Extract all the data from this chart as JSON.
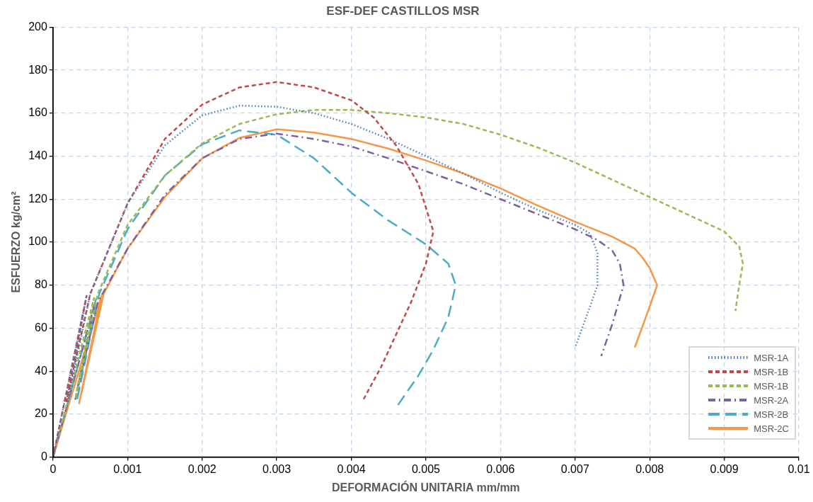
{
  "chart_data": {
    "type": "line",
    "title": "ESF-DEF CASTILLOS MSR",
    "xlabel": "DEFORMACIÓN UNITARIA mm/mm",
    "ylabel": "ESFUERZO kg/cm²",
    "xlim": [
      0,
      0.01
    ],
    "ylim": [
      0,
      200
    ],
    "xticks": [
      0,
      0.001,
      0.002,
      0.003,
      0.004,
      0.005,
      0.006,
      0.007,
      0.008,
      0.009,
      0.01
    ],
    "yticks": [
      0,
      20,
      40,
      60,
      80,
      100,
      120,
      140,
      160,
      180,
      200
    ],
    "grid": true,
    "legend": "bottom right",
    "marker": "none",
    "series": [
      {
        "name": "MSR-1A",
        "color": "#4a7ebb",
        "line_style": "dotted",
        "x": [
          0,
          0.00045,
          0.0002,
          0.0005,
          0.001,
          0.0015,
          0.002,
          0.0025,
          0.003,
          0.0035,
          0.004,
          0.0045,
          0.005,
          0.0055,
          0.006,
          0.0065,
          0.007,
          0.0072,
          0.0073,
          0.0073,
          0.0072,
          0.007
        ],
        "values": [
          0,
          75,
          26,
          76,
          118,
          145,
          159,
          163.5,
          163,
          160,
          155,
          148,
          140,
          132,
          123,
          115,
          108,
          104,
          95,
          80,
          70,
          51
        ]
      },
      {
        "name": "MSR-1B",
        "color": "#be4b48",
        "line_style": "dashed",
        "x": [
          0,
          0.00045,
          0.00018,
          0.0005,
          0.001,
          0.0015,
          0.002,
          0.0025,
          0.003,
          0.0035,
          0.004,
          0.0043,
          0.0046,
          0.0049,
          0.005,
          0.0051,
          0.005,
          0.0048,
          0.0046,
          0.0044,
          0.00415
        ],
        "values": [
          0,
          75,
          26,
          76,
          118,
          148,
          164,
          172,
          174.5,
          172,
          166,
          158,
          145,
          127,
          116,
          105,
          90,
          72,
          57,
          42,
          26
        ]
      },
      {
        "name": "MSR-1B",
        "color": "#98b954",
        "line_style": "dashed",
        "x": [
          0,
          0.00055,
          0.0003,
          0.0006,
          0.001,
          0.0015,
          0.002,
          0.0025,
          0.003,
          0.0035,
          0.004,
          0.0045,
          0.005,
          0.0055,
          0.006,
          0.0065,
          0.007,
          0.0075,
          0.008,
          0.0085,
          0.009,
          0.0092,
          0.00925,
          0.0092,
          0.00915
        ],
        "values": [
          0,
          74,
          27,
          76,
          108,
          131,
          146,
          155,
          159.5,
          161.5,
          161.5,
          160,
          158,
          155,
          150,
          144,
          137,
          129,
          121,
          113,
          105,
          98,
          90,
          80,
          68
        ]
      },
      {
        "name": "MSR-2A",
        "color": "#7d60a0",
        "line_style": "dashdot",
        "x": [
          0,
          0.00055,
          0.0003,
          0.0006,
          0.001,
          0.0015,
          0.002,
          0.0025,
          0.003,
          0.0035,
          0.004,
          0.0045,
          0.005,
          0.0055,
          0.006,
          0.0065,
          0.007,
          0.0073,
          0.0075,
          0.0076,
          0.00765,
          0.0075,
          0.00735
        ],
        "values": [
          0,
          70,
          27,
          72,
          97,
          122,
          139,
          148,
          150.5,
          148,
          144.5,
          139,
          133,
          127,
          120,
          113,
          106,
          101,
          96,
          90,
          80,
          62,
          47
        ]
      },
      {
        "name": "MSR-2B",
        "color": "#4bacc6",
        "line_style": "longdash",
        "x": [
          0,
          0.00058,
          0.00032,
          0.00062,
          0.001,
          0.0015,
          0.002,
          0.0025,
          0.003,
          0.0035,
          0.004,
          0.0045,
          0.005,
          0.0053,
          0.0054,
          0.0053,
          0.0051,
          0.0049,
          0.0046
        ],
        "values": [
          0,
          74,
          26,
          76,
          106,
          131,
          145.5,
          152,
          150,
          139,
          123,
          110,
          99,
          90,
          80,
          65,
          50,
          38,
          23
        ]
      },
      {
        "name": "MSR-2C",
        "color": "#f79646",
        "line_style": "solid",
        "x": [
          0,
          0.00065,
          0.00035,
          0.00068,
          0.001,
          0.0015,
          0.002,
          0.0025,
          0.003,
          0.0035,
          0.004,
          0.0045,
          0.005,
          0.0055,
          0.006,
          0.0065,
          0.007,
          0.0075,
          0.0078,
          0.0079,
          0.008,
          0.0081,
          0.008,
          0.0078
        ],
        "values": [
          0,
          75,
          25,
          76,
          97,
          121,
          139,
          148.5,
          152.5,
          151,
          148,
          143.5,
          138,
          132,
          125,
          117,
          109.5,
          102.5,
          97,
          93,
          88,
          80,
          70,
          51
        ]
      }
    ]
  }
}
